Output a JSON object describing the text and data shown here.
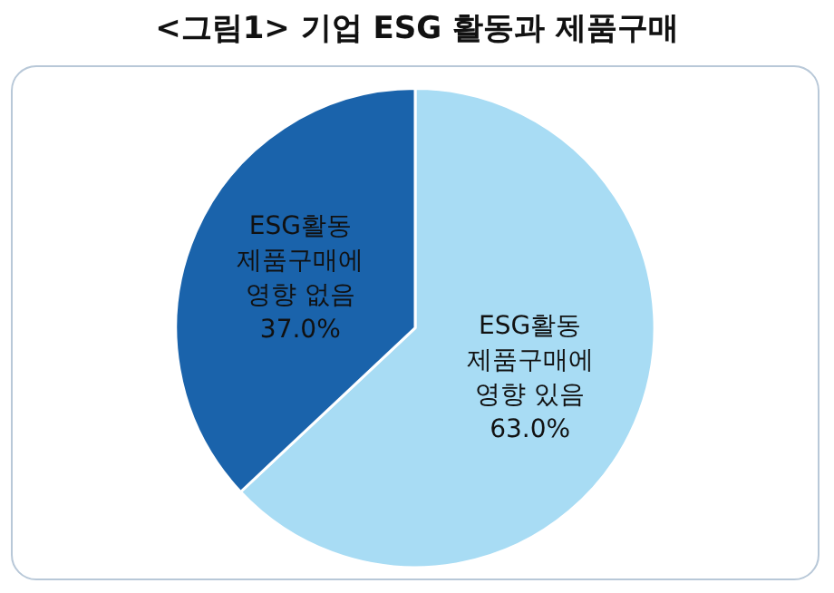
{
  "chart_data": {
    "type": "pie",
    "title": "<그림1> 기업 ESG 활동과 제품구매",
    "categories": [
      "ESG활동\n제품구매에\n영향 있음",
      "ESG활동\n제품구매에\n영향 없음"
    ],
    "values": [
      63.0,
      37.0
    ],
    "colors": [
      "#a8dcf4",
      "#1a63ab"
    ],
    "value_labels": [
      "63.0%",
      "37.0%"
    ],
    "legend": false
  }
}
